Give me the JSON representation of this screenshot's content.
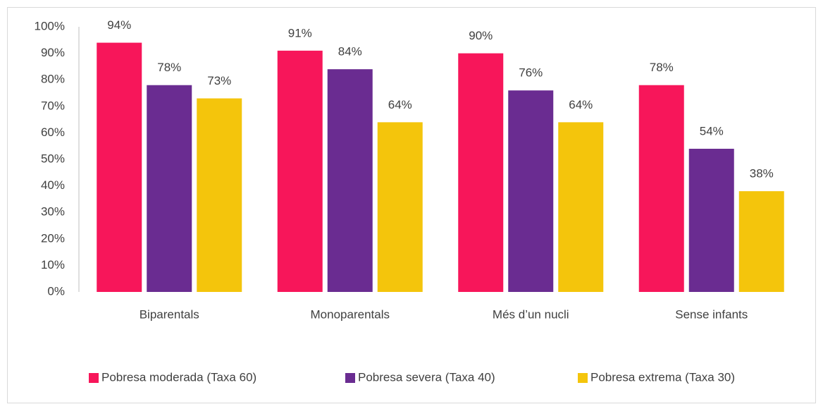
{
  "chart_data": {
    "type": "bar",
    "categories": [
      "Biparentals",
      "Monoparentals",
      "Més d’un nucli",
      "Sense infants"
    ],
    "series": [
      {
        "name": "Pobresa moderada (Taxa 60)",
        "color": "#f7165a",
        "values": [
          94,
          91,
          90,
          78
        ],
        "value_labels": [
          "94%",
          "91%",
          "90%",
          "78%"
        ]
      },
      {
        "name": "Pobresa severa (Taxa 40)",
        "color": "#6a2c91",
        "values": [
          78,
          84,
          76,
          54
        ],
        "value_labels": [
          "78%",
          "84%",
          "76%",
          "54%"
        ]
      },
      {
        "name": "Pobresa extrema (Taxa 30)",
        "color": "#f4c50c",
        "values": [
          73,
          64,
          64,
          38
        ],
        "value_labels": [
          "73%",
          "64%",
          "64%",
          "38%"
        ]
      }
    ],
    "ylim": [
      0,
      100
    ],
    "yticks": [
      {
        "value": 0,
        "label": "0%"
      },
      {
        "value": 10,
        "label": "10%"
      },
      {
        "value": 20,
        "label": "20%"
      },
      {
        "value": 30,
        "label": "30%"
      },
      {
        "value": 40,
        "label": "40%"
      },
      {
        "value": 50,
        "label": "50%"
      },
      {
        "value": 60,
        "label": "60%"
      },
      {
        "value": 70,
        "label": "70%"
      },
      {
        "value": 80,
        "label": "80%"
      },
      {
        "value": 90,
        "label": "90%"
      },
      {
        "value": 100,
        "label": "100%"
      }
    ],
    "grid": false,
    "legend": "bottom"
  }
}
